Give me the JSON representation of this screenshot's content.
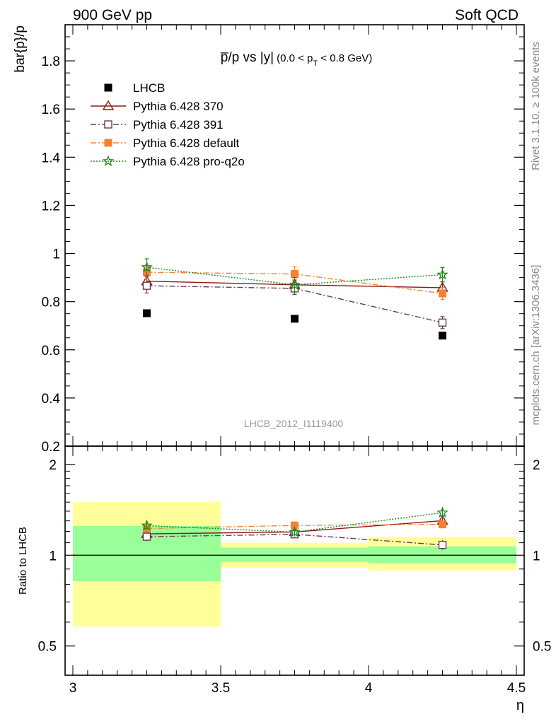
{
  "header": {
    "left_label": "900 GeV pp",
    "right_label": "Soft QCD"
  },
  "side_labels": {
    "upper": "Rivet 3.1.10, ≥ 100k events",
    "lower": "mcplots.cern.ch [arXiv:1306.3436]"
  },
  "watermark": "LHCB_2012_I1119400",
  "chart_data": [
    {
      "type": "scatter",
      "panel": "main",
      "title_main": "p̅/p vs |y|",
      "title_cut_open": "(0.0 < p",
      "title_cut_sub": "T",
      "title_cut_close": " < 0.8 GeV)",
      "ylabel": "bar{p}/p",
      "xlim": [
        3.0,
        4.5
      ],
      "ylim": [
        0.2,
        1.95
      ],
      "yticks": [
        0.2,
        0.4,
        0.6,
        0.8,
        1,
        1.2,
        1.4,
        1.6,
        1.8
      ],
      "ytick_labels": [
        "0.2",
        "0.4",
        "0.6",
        "0.8",
        "1",
        "1.2",
        "1.4",
        "1.6",
        "1.8"
      ],
      "legend_position": "top-left",
      "series": [
        {
          "name": "LHCB",
          "color": "#000000",
          "marker": "filled-square",
          "line": "none",
          "x": [
            3.25,
            3.75,
            4.25
          ],
          "y": [
            0.752,
            0.729,
            0.659
          ]
        },
        {
          "name": "Pythia 6.428 370",
          "color": "#8b1a1a",
          "marker": "open-triangle",
          "line": "solid",
          "x": [
            3.25,
            3.75,
            4.25
          ],
          "y": [
            0.885,
            0.87,
            0.858
          ],
          "yerr": [
            0.02,
            0.02,
            0.025
          ]
        },
        {
          "name": "Pythia 6.428 391",
          "color": "#6a3d5a",
          "marker": "open-square",
          "line": "dashdot",
          "x": [
            3.25,
            3.75,
            4.25
          ],
          "y": [
            0.866,
            0.855,
            0.713
          ],
          "yerr": [
            0.03,
            0.025,
            0.025
          ]
        },
        {
          "name": "Pythia 6.428 default",
          "color": "#f58231",
          "marker": "filled-square",
          "line": "dashdot",
          "x": [
            3.25,
            3.75,
            4.25
          ],
          "y": [
            0.922,
            0.915,
            0.834
          ],
          "yerr": [
            0.025,
            0.03,
            0.025
          ]
        },
        {
          "name": "Pythia 6.428 pro-q2o",
          "color": "#1a8a1a",
          "marker": "open-star",
          "line": "dotted",
          "x": [
            3.25,
            3.75,
            4.25
          ],
          "y": [
            0.943,
            0.87,
            0.912
          ],
          "yerr": [
            0.035,
            0.03,
            0.03
          ]
        }
      ]
    },
    {
      "type": "scatter",
      "panel": "ratio",
      "ylabel": "Ratio to LHCB",
      "xlabel": "η",
      "scale": "log",
      "xlim": [
        3.0,
        4.5
      ],
      "ylim": [
        0.4,
        2.3
      ],
      "xticks": [
        3,
        3.5,
        4,
        4.5
      ],
      "xtick_labels": [
        "3",
        "3.5",
        "4",
        "4.5"
      ],
      "yticks": [
        0.5,
        1,
        2
      ],
      "ytick_labels": [
        "0.5",
        "1",
        "2"
      ],
      "bands": [
        {
          "x0": 3.0,
          "x1": 3.5,
          "y1": [
            0.82,
            1.25
          ],
          "y2": [
            0.58,
            1.5
          ]
        },
        {
          "x0": 3.5,
          "x1": 4.0,
          "y1": [
            0.95,
            1.06
          ],
          "y2": [
            0.91,
            1.1
          ]
        },
        {
          "x0": 4.0,
          "x1": 4.5,
          "y1": [
            0.94,
            1.07
          ],
          "y2": [
            0.89,
            1.15
          ]
        }
      ],
      "series": [
        {
          "name": "Pythia 6.428 370",
          "x": [
            3.25,
            3.75,
            4.25
          ],
          "y": [
            1.177,
            1.194,
            1.302
          ],
          "yerr": [
            0.03,
            0.03,
            0.04
          ]
        },
        {
          "name": "Pythia 6.428 391",
          "x": [
            3.25,
            3.75,
            4.25
          ],
          "y": [
            1.152,
            1.173,
            1.082
          ],
          "yerr": [
            0.04,
            0.035,
            0.04
          ]
        },
        {
          "name": "Pythia 6.428 default",
          "x": [
            3.25,
            3.75,
            4.25
          ],
          "y": [
            1.226,
            1.255,
            1.266
          ],
          "yerr": [
            0.035,
            0.04,
            0.04
          ]
        },
        {
          "name": "Pythia 6.428 pro-q2o",
          "x": [
            3.25,
            3.75,
            4.25
          ],
          "y": [
            1.254,
            1.193,
            1.384
          ],
          "yerr": [
            0.045,
            0.04,
            0.045
          ]
        }
      ]
    }
  ]
}
